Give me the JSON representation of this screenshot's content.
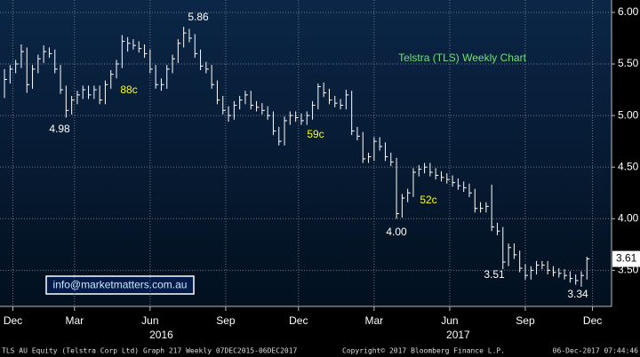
{
  "chart_data": {
    "type": "ohlc",
    "title": "Telstra (TLS) Weekly Chart",
    "color": "#ffffff",
    "high": [
      5.45,
      5.49,
      5.54,
      5.69,
      5.66,
      5.49,
      5.59,
      5.68,
      5.66,
      5.64,
      5.49,
      5.29,
      5.19,
      5.24,
      5.29,
      5.29,
      5.29,
      5.29,
      5.34,
      5.44,
      5.54,
      5.78,
      5.76,
      5.74,
      5.72,
      5.69,
      5.64,
      5.49,
      5.36,
      5.49,
      5.59,
      5.74,
      5.86,
      5.84,
      5.79,
      5.64,
      5.52,
      5.49,
      5.34,
      5.19,
      5.09,
      5.14,
      5.19,
      5.24,
      5.24,
      5.14,
      5.12,
      5.09,
      5.04,
      4.89,
      4.99,
      5.04,
      5.04,
      5.02,
      5.04,
      5.14,
      5.31,
      5.32,
      5.26,
      5.19,
      5.16,
      5.25,
      5.24,
      4.89,
      4.84,
      4.64,
      4.79,
      4.79,
      4.74,
      4.64,
      4.59,
      4.24,
      4.29,
      4.49,
      4.52,
      4.54,
      4.54,
      4.49,
      4.46,
      4.44,
      4.42,
      4.39,
      4.36,
      4.34,
      4.29,
      4.16,
      4.16,
      4.33,
      3.96,
      3.92,
      3.76,
      3.76,
      3.69,
      3.56,
      3.54,
      3.59,
      3.59,
      3.59,
      3.54,
      3.52,
      3.51,
      3.49,
      3.46,
      3.49,
      3.63
    ],
    "low": [
      5.17,
      5.31,
      5.41,
      5.46,
      5.22,
      5.26,
      5.41,
      5.51,
      5.56,
      5.41,
      5.21,
      4.98,
      5.01,
      5.11,
      5.16,
      5.16,
      5.16,
      5.11,
      5.11,
      5.26,
      5.36,
      5.46,
      5.62,
      5.64,
      5.61,
      5.56,
      5.41,
      5.26,
      5.24,
      5.26,
      5.41,
      5.51,
      5.66,
      5.71,
      5.56,
      5.44,
      5.41,
      5.26,
      5.11,
      5.01,
      4.94,
      4.96,
      5.06,
      5.11,
      5.06,
      5.04,
      5.01,
      4.96,
      4.81,
      4.71,
      4.71,
      4.91,
      4.94,
      4.91,
      4.91,
      4.96,
      5.06,
      5.18,
      5.11,
      5.08,
      5.06,
      5.06,
      4.81,
      4.76,
      4.54,
      4.54,
      4.56,
      4.66,
      4.56,
      4.51,
      4.0,
      4.01,
      4.16,
      4.21,
      4.41,
      4.44,
      4.41,
      4.38,
      4.36,
      4.34,
      4.31,
      4.28,
      4.26,
      4.21,
      4.06,
      4.06,
      4.06,
      3.88,
      3.84,
      3.51,
      3.54,
      3.61,
      3.48,
      3.41,
      3.41,
      3.46,
      3.51,
      3.46,
      3.44,
      3.43,
      3.41,
      3.38,
      3.36,
      3.34,
      3.41
    ],
    "close": [
      5.35,
      5.45,
      5.5,
      5.62,
      5.3,
      5.45,
      5.55,
      5.62,
      5.6,
      5.45,
      5.25,
      5.05,
      5.15,
      5.2,
      5.25,
      5.2,
      5.25,
      5.15,
      5.3,
      5.4,
      5.5,
      5.72,
      5.7,
      5.68,
      5.65,
      5.6,
      5.45,
      5.3,
      5.3,
      5.45,
      5.55,
      5.7,
      5.8,
      5.75,
      5.6,
      5.48,
      5.45,
      5.3,
      5.15,
      5.05,
      5.0,
      5.1,
      5.15,
      5.2,
      5.1,
      5.08,
      5.05,
      5.0,
      4.85,
      4.75,
      4.95,
      5.0,
      4.98,
      4.95,
      5.0,
      5.1,
      5.28,
      5.22,
      5.15,
      5.12,
      5.1,
      5.2,
      4.85,
      4.8,
      4.58,
      4.6,
      4.75,
      4.7,
      4.6,
      4.55,
      4.05,
      4.2,
      4.25,
      4.45,
      4.48,
      4.5,
      4.45,
      4.42,
      4.4,
      4.38,
      4.35,
      4.32,
      4.3,
      4.25,
      4.1,
      4.1,
      4.12,
      3.92,
      3.88,
      3.58,
      3.72,
      3.65,
      3.52,
      3.45,
      3.5,
      3.55,
      3.55,
      3.5,
      3.48,
      3.47,
      3.45,
      3.42,
      3.4,
      3.45,
      3.61
    ],
    "ylim": [
      3.15,
      6.12
    ],
    "yticks": [
      {
        "value": 3.5,
        "label": "3.50"
      },
      {
        "value": 4,
        "label": "4.00"
      },
      {
        "value": 4.5,
        "label": "4.50"
      },
      {
        "value": 5,
        "label": "5.00"
      },
      {
        "value": 5.5,
        "label": "5.50"
      },
      {
        "value": 6,
        "label": "6.00"
      }
    ],
    "xlim": [
      -0.8,
      108.4
    ],
    "xticks": [
      {
        "value": 1.5,
        "label": "Dec"
      },
      {
        "value": 12.5,
        "label": "Mar"
      },
      {
        "value": 26,
        "label": "Jun"
      },
      {
        "value": 39.5,
        "label": "Sep"
      },
      {
        "value": 52.5,
        "label": "Dec"
      },
      {
        "value": 66,
        "label": "Mar"
      },
      {
        "value": 79.5,
        "label": "Jun"
      },
      {
        "value": 93,
        "label": "Sep"
      },
      {
        "value": 105,
        "label": "Dec"
      }
    ],
    "years": [
      {
        "value": 28,
        "label": "2016"
      },
      {
        "value": 81,
        "label": "2017"
      }
    ],
    "grid": true,
    "last_price": 3.61,
    "annotations": [
      {
        "text": "5.86",
        "color": "#ffffff"
      },
      {
        "text": "4.98",
        "color": "#ffffff"
      },
      {
        "text": "88c",
        "color": "#ffff00"
      },
      {
        "text": "59c",
        "color": "#ffff00"
      },
      {
        "text": "4.00",
        "color": "#ffffff"
      },
      {
        "text": "52c",
        "color": "#ffff00"
      },
      {
        "text": "3.51",
        "color": "#ffffff"
      },
      {
        "text": "3.34",
        "color": "#ffffff"
      }
    ],
    "watermark": "info@marketmatters.com.au",
    "footer": [
      "TLS AU Equity (Telstra Corp Ltd) Graph 217  Weekly 07DEC2015-06DEC2017",
      "Copyright© 2017 Bloomberg Finance L.P.",
      "06-Dec-2017 07:44:46"
    ]
  }
}
